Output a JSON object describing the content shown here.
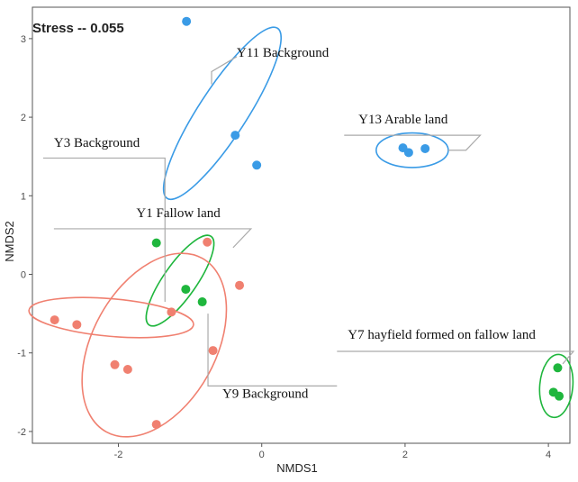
{
  "chart_data": {
    "type": "scatter",
    "title": "",
    "stress_label": "Stress -- 0.055",
    "xlabel": "NMDS1",
    "ylabel": "NMDS2",
    "xlim": [
      -3.2,
      4.3
    ],
    "ylim": [
      -2.15,
      3.4
    ],
    "x_ticks": [
      -2,
      0,
      2,
      4
    ],
    "y_ticks": [
      -2,
      -1,
      0,
      1,
      2,
      3
    ],
    "x_tick_labels": [
      "-2",
      "0",
      "2",
      "4"
    ],
    "y_tick_labels": [
      "-2",
      "-1",
      "0",
      "1",
      "2",
      "3"
    ],
    "grid": false,
    "colors": {
      "red": "#f08070",
      "green": "#1fb63d",
      "blue": "#3a9be6",
      "leader": "#aaaaaa"
    },
    "points": [
      {
        "x": -1.05,
        "y": 3.22,
        "color": "blue"
      },
      {
        "x": -0.37,
        "y": 1.77,
        "color": "blue"
      },
      {
        "x": -0.07,
        "y": 1.39,
        "color": "blue"
      },
      {
        "x": 1.97,
        "y": 1.61,
        "color": "blue"
      },
      {
        "x": 2.05,
        "y": 1.55,
        "color": "blue"
      },
      {
        "x": 2.28,
        "y": 1.6,
        "color": "blue"
      },
      {
        "x": -1.47,
        "y": 0.4,
        "color": "green"
      },
      {
        "x": -1.06,
        "y": -0.19,
        "color": "green"
      },
      {
        "x": -0.83,
        "y": -0.35,
        "color": "green"
      },
      {
        "x": 4.13,
        "y": -1.19,
        "color": "green"
      },
      {
        "x": 4.07,
        "y": -1.5,
        "color": "green"
      },
      {
        "x": 4.15,
        "y": -1.55,
        "color": "green"
      },
      {
        "x": -0.76,
        "y": 0.41,
        "color": "red"
      },
      {
        "x": -0.31,
        "y": -0.14,
        "color": "red"
      },
      {
        "x": -1.26,
        "y": -0.48,
        "color": "red"
      },
      {
        "x": -0.68,
        "y": -0.97,
        "color": "red"
      },
      {
        "x": -2.89,
        "y": -0.58,
        "color": "red"
      },
      {
        "x": -2.58,
        "y": -0.64,
        "color": "red"
      },
      {
        "x": -2.05,
        "y": -1.15,
        "color": "red"
      },
      {
        "x": -1.87,
        "y": -1.21,
        "color": "red"
      },
      {
        "x": -1.47,
        "y": -1.91,
        "color": "red"
      }
    ],
    "ellipses": [
      {
        "cx": -0.55,
        "cy": 2.05,
        "rx": 1.35,
        "ry": 0.32,
        "angle_deg": -57,
        "color": "blue"
      },
      {
        "cx": 2.1,
        "cy": 1.58,
        "rx": 0.48,
        "ry": 0.23,
        "angle_deg": 0,
        "color": "blue"
      },
      {
        "cx": -1.14,
        "cy": -0.08,
        "rx": 0.72,
        "ry": 0.22,
        "angle_deg": -55,
        "color": "green"
      },
      {
        "cx": 4.11,
        "cy": -1.42,
        "rx": 0.42,
        "ry": 0.22,
        "angle_deg": -85,
        "color": "green"
      },
      {
        "cx": -1.5,
        "cy": -0.9,
        "rx": 1.32,
        "ry": 0.82,
        "angle_deg": -61,
        "color": "red"
      },
      {
        "cx": -2.1,
        "cy": -0.55,
        "rx": 1.1,
        "ry": 0.25,
        "angle_deg": 5,
        "color": "red"
      }
    ],
    "annotations": [
      {
        "text": "Y11 Background",
        "x": -0.35,
        "y": 2.77,
        "line": [
          [
            -0.35,
            2.77
          ],
          [
            -0.7,
            2.58
          ],
          [
            -0.7,
            2.42
          ]
        ]
      },
      {
        "text": "Y13 Arable land",
        "x": 1.35,
        "y": 1.92,
        "line": [
          [
            1.15,
            1.77
          ],
          [
            3.05,
            1.77
          ],
          [
            2.85,
            1.58
          ],
          [
            2.6,
            1.58
          ]
        ]
      },
      {
        "text": "Y3 Background",
        "x": -2.9,
        "y": 1.62,
        "line": [
          [
            -3.05,
            1.48
          ],
          [
            -1.35,
            1.48
          ],
          [
            -1.35,
            -0.35
          ]
        ]
      },
      {
        "text": "Y1 Fallow land",
        "x": -1.75,
        "y": 0.73,
        "line": [
          [
            -2.9,
            0.58
          ],
          [
            -0.15,
            0.58
          ],
          [
            -0.4,
            0.34
          ]
        ]
      },
      {
        "text": "Y7 hayfield formed on fallow land",
        "x": 1.2,
        "y": -0.82,
        "line": [
          [
            1.05,
            -0.98
          ],
          [
            4.35,
            -0.98
          ],
          [
            4.2,
            -1.14
          ]
        ]
      },
      {
        "text": "Y9 Background",
        "x": -0.55,
        "y": -1.57,
        "line": [
          [
            -0.75,
            -0.5
          ],
          [
            -0.75,
            -1.42
          ],
          [
            1.05,
            -1.42
          ]
        ]
      }
    ]
  }
}
